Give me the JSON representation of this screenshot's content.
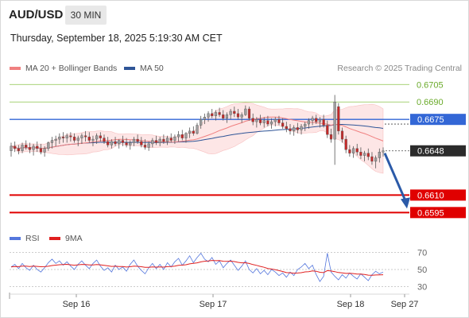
{
  "header": {
    "symbol": "AUD/USD",
    "timeframe": "30 MIN",
    "datetime": "Thursday, September 18, 2025 5:19:30 AM CET"
  },
  "legend": {
    "ma20": {
      "label": "MA 20 + Bollinger Bands",
      "color": "#f08080"
    },
    "ma50": {
      "label": "MA 50",
      "color": "#2f5597"
    },
    "credit": "Research © 2025 Trading Central"
  },
  "rsi_legend": {
    "rsi": {
      "label": "RSI",
      "color": "#5577dd"
    },
    "ma9": {
      "label": "9MA",
      "color": "#e02020"
    }
  },
  "chart_data": [
    {
      "type": "line",
      "subtype": "candlestick",
      "instrument": "AUD/USD",
      "timeframe": "30 MIN",
      "x_ticks": [
        "Sep 16",
        "Sep 17",
        "Sep 18",
        "Sep 27"
      ],
      "ylim": [
        0.6585,
        0.6712
      ],
      "levels": [
        {
          "value": 0.6705,
          "label": "0.6705",
          "color": "#8bc34a",
          "style": "thin"
        },
        {
          "value": 0.669,
          "label": "0.6690",
          "color": "#8bc34a",
          "style": "thin"
        },
        {
          "value": 0.6675,
          "label": "0.6675",
          "color": "#3367d6",
          "style": "medium"
        },
        {
          "value": 0.661,
          "label": "0.6610",
          "color": "#e00000",
          "style": "thick"
        },
        {
          "value": 0.6595,
          "label": "0.6595",
          "color": "#e00000",
          "style": "thick"
        }
      ],
      "last_price": {
        "value": 0.6648,
        "label": "0.6648"
      },
      "projection": {
        "from": 0.6646,
        "to": 0.6597,
        "direction": "down"
      },
      "candles": [
        [
          0.6648,
          0.6655,
          0.6643,
          0.6652
        ],
        [
          0.6652,
          0.6656,
          0.6647,
          0.665
        ],
        [
          0.665,
          0.6653,
          0.6645,
          0.6648
        ],
        [
          0.6648,
          0.6655,
          0.6646,
          0.6653
        ],
        [
          0.6653,
          0.6657,
          0.6649,
          0.6651
        ],
        [
          0.6651,
          0.6655,
          0.6646,
          0.6649
        ],
        [
          0.6649,
          0.6654,
          0.6644,
          0.6652
        ],
        [
          0.6652,
          0.6656,
          0.6647,
          0.665
        ],
        [
          0.665,
          0.6654,
          0.6645,
          0.6647
        ],
        [
          0.6647,
          0.6652,
          0.6643,
          0.665
        ],
        [
          0.665,
          0.6656,
          0.6648,
          0.6655
        ],
        [
          0.6655,
          0.666,
          0.665,
          0.6657
        ],
        [
          0.6657,
          0.6661,
          0.6652,
          0.6658
        ],
        [
          0.6658,
          0.6663,
          0.6654,
          0.666
        ],
        [
          0.666,
          0.6664,
          0.6655,
          0.6659
        ],
        [
          0.6659,
          0.6663,
          0.6655,
          0.6661
        ],
        [
          0.6661,
          0.6664,
          0.6656,
          0.666
        ],
        [
          0.666,
          0.6663,
          0.6655,
          0.6657
        ],
        [
          0.6657,
          0.6661,
          0.6652,
          0.6659
        ],
        [
          0.6659,
          0.6663,
          0.6654,
          0.6661
        ],
        [
          0.6661,
          0.6665,
          0.6656,
          0.666
        ],
        [
          0.666,
          0.6664,
          0.6655,
          0.6657
        ],
        [
          0.6657,
          0.6661,
          0.6652,
          0.6658
        ],
        [
          0.6658,
          0.6663,
          0.6654,
          0.6661
        ],
        [
          0.6661,
          0.6664,
          0.6656,
          0.6659
        ],
        [
          0.6659,
          0.6662,
          0.6654,
          0.6656
        ],
        [
          0.6656,
          0.666,
          0.6651,
          0.6653
        ],
        [
          0.6653,
          0.6658,
          0.665,
          0.6656
        ],
        [
          0.6656,
          0.666,
          0.6652,
          0.6654
        ],
        [
          0.6654,
          0.6658,
          0.665,
          0.6657
        ],
        [
          0.6657,
          0.6661,
          0.6652,
          0.6655
        ],
        [
          0.6655,
          0.6659,
          0.6651,
          0.6653
        ],
        [
          0.6653,
          0.6657,
          0.6649,
          0.6655
        ],
        [
          0.6655,
          0.666,
          0.6652,
          0.6658
        ],
        [
          0.6658,
          0.6662,
          0.6654,
          0.6656
        ],
        [
          0.6656,
          0.666,
          0.6651,
          0.6653
        ],
        [
          0.6653,
          0.6658,
          0.6649,
          0.6651
        ],
        [
          0.6651,
          0.6656,
          0.6648,
          0.6654
        ],
        [
          0.6654,
          0.6659,
          0.6651,
          0.6657
        ],
        [
          0.6657,
          0.6661,
          0.6653,
          0.6655
        ],
        [
          0.6655,
          0.666,
          0.6652,
          0.6658
        ],
        [
          0.6658,
          0.6662,
          0.6654,
          0.6656
        ],
        [
          0.6656,
          0.6661,
          0.6653,
          0.6659
        ],
        [
          0.6659,
          0.6663,
          0.6655,
          0.6657
        ],
        [
          0.6657,
          0.6662,
          0.6654,
          0.666
        ],
        [
          0.666,
          0.6665,
          0.6656,
          0.6662
        ],
        [
          0.6662,
          0.6666,
          0.6657,
          0.6659
        ],
        [
          0.6659,
          0.6664,
          0.6655,
          0.6663
        ],
        [
          0.6663,
          0.6668,
          0.6659,
          0.6665
        ],
        [
          0.6665,
          0.6669,
          0.6661,
          0.6663
        ],
        [
          0.6663,
          0.6672,
          0.6662,
          0.667
        ],
        [
          0.667,
          0.6678,
          0.6667,
          0.6675
        ],
        [
          0.6675,
          0.668,
          0.6671,
          0.6677
        ],
        [
          0.6677,
          0.6682,
          0.6673,
          0.668
        ],
        [
          0.668,
          0.6684,
          0.6676,
          0.6678
        ],
        [
          0.6678,
          0.6683,
          0.6674,
          0.6681
        ],
        [
          0.6681,
          0.6685,
          0.6677,
          0.6679
        ],
        [
          0.6679,
          0.6683,
          0.6674,
          0.6676
        ],
        [
          0.6676,
          0.6681,
          0.6672,
          0.6679
        ],
        [
          0.6679,
          0.6684,
          0.6675,
          0.6682
        ],
        [
          0.6682,
          0.6686,
          0.6677,
          0.668
        ],
        [
          0.668,
          0.6684,
          0.6675,
          0.6677
        ],
        [
          0.6677,
          0.6681,
          0.6672,
          0.6679
        ],
        [
          0.6679,
          0.6687,
          0.6678,
          0.6684
        ],
        [
          0.6684,
          0.6686,
          0.6674,
          0.6676
        ],
        [
          0.6676,
          0.668,
          0.667,
          0.6673
        ],
        [
          0.6673,
          0.6677,
          0.6668,
          0.6675
        ],
        [
          0.6675,
          0.6679,
          0.667,
          0.6672
        ],
        [
          0.6672,
          0.6677,
          0.6668,
          0.6674
        ],
        [
          0.6674,
          0.6678,
          0.6669,
          0.6671
        ],
        [
          0.6671,
          0.6676,
          0.6667,
          0.6673
        ],
        [
          0.6673,
          0.6677,
          0.6669,
          0.6675
        ],
        [
          0.6675,
          0.6678,
          0.667,
          0.6672
        ],
        [
          0.6672,
          0.6676,
          0.6667,
          0.6669
        ],
        [
          0.6669,
          0.6673,
          0.6664,
          0.6667
        ],
        [
          0.6667,
          0.6671,
          0.6662,
          0.6665
        ],
        [
          0.6665,
          0.667,
          0.6661,
          0.6668
        ],
        [
          0.6668,
          0.6672,
          0.6663,
          0.6666
        ],
        [
          0.6666,
          0.6671,
          0.6662,
          0.6669
        ],
        [
          0.6669,
          0.6673,
          0.6665,
          0.6671
        ],
        [
          0.6671,
          0.6676,
          0.6667,
          0.6674
        ],
        [
          0.6674,
          0.6678,
          0.667,
          0.6676
        ],
        [
          0.6676,
          0.6679,
          0.6671,
          0.6673
        ],
        [
          0.6673,
          0.6677,
          0.6668,
          0.6675
        ],
        [
          0.6675,
          0.6679,
          0.6668,
          0.667
        ],
        [
          0.667,
          0.6674,
          0.6659,
          0.6662
        ],
        [
          0.6662,
          0.6667,
          0.6655,
          0.6658
        ],
        [
          0.6658,
          0.6696,
          0.6636,
          0.669
        ],
        [
          0.6686,
          0.6689,
          0.6662,
          0.6665
        ],
        [
          0.6665,
          0.6668,
          0.6655,
          0.6658
        ],
        [
          0.6658,
          0.6661,
          0.6646,
          0.6649
        ],
        [
          0.6649,
          0.6653,
          0.6643,
          0.6646
        ],
        [
          0.6646,
          0.6652,
          0.6642,
          0.665
        ],
        [
          0.665,
          0.6654,
          0.6644,
          0.6647
        ],
        [
          0.6647,
          0.6651,
          0.6641,
          0.6644
        ],
        [
          0.6644,
          0.6648,
          0.6639,
          0.6646
        ],
        [
          0.6646,
          0.665,
          0.664,
          0.6643
        ],
        [
          0.6643,
          0.6647,
          0.6636,
          0.6639
        ],
        [
          0.6639,
          0.6644,
          0.6633,
          0.6642
        ],
        [
          0.6642,
          0.665,
          0.6638,
          0.6647
        ],
        [
          0.6647,
          0.6651,
          0.6643,
          0.6648
        ]
      ]
    },
    {
      "type": "line",
      "name": "RSI",
      "ylim": [
        25,
        75
      ],
      "y_ticks": [
        70,
        50,
        30
      ],
      "series": [
        {
          "name": "RSI",
          "values": [
            53,
            56,
            51,
            57,
            52,
            49,
            55,
            50,
            47,
            52,
            58,
            62,
            57,
            60,
            55,
            59,
            54,
            50,
            56,
            60,
            55,
            51,
            57,
            61,
            54,
            49,
            52,
            47,
            55,
            50,
            53,
            48,
            56,
            61,
            54,
            49,
            45,
            52,
            57,
            51,
            56,
            50,
            58,
            53,
            59,
            63,
            55,
            60,
            66,
            58,
            64,
            69,
            62,
            59,
            64,
            56,
            60,
            52,
            57,
            61,
            55,
            49,
            54,
            60,
            50,
            46,
            51,
            45,
            49,
            44,
            50,
            47,
            43,
            46,
            41,
            47,
            43,
            50,
            53,
            57,
            51,
            55,
            44,
            36,
            42,
            69,
            47,
            42,
            38,
            44,
            40,
            46,
            42,
            39,
            45,
            41,
            37,
            44,
            48,
            45,
            47
          ]
        },
        {
          "name": "9MA",
          "values": [
            53,
            53.5,
            53.3,
            54,
            53.9,
            53.5,
            53.9,
            53.6,
            53.2,
            53.3,
            53.8,
            54.6,
            55.1,
            55.6,
            55.7,
            56,
            55.5,
            55,
            55.5,
            55.9,
            55.8,
            55.3,
            55.4,
            55.8,
            55.5,
            54.8,
            54.3,
            53.6,
            53.8,
            53.4,
            53.4,
            52.9,
            53.2,
            53.9,
            53.7,
            53.2,
            52.6,
            52.5,
            53,
            52.8,
            53,
            52.8,
            53.3,
            53.5,
            54,
            54.8,
            55.1,
            55.6,
            56.6,
            57.1,
            57.8,
            58.9,
            59.6,
            60,
            60.6,
            60.3,
            60.4,
            59.6,
            59.5,
            59.7,
            59.3,
            58.3,
            57.8,
            57.9,
            57,
            55.7,
            54.8,
            53.6,
            52.6,
            51.2,
            50.6,
            49.7,
            48.7,
            47.7,
            46.4,
            46.2,
            45.7,
            45.9,
            46.3,
            47.2,
            47.5,
            48.3,
            48,
            46.8,
            46.4,
            48.7,
            48.2,
            47.5,
            46.5,
            46.1,
            45.5,
            45.6,
            45.3,
            44.6,
            44.6,
            44.2,
            43.4,
            43.3,
            43.6,
            43.7,
            43.9
          ]
        }
      ]
    }
  ]
}
